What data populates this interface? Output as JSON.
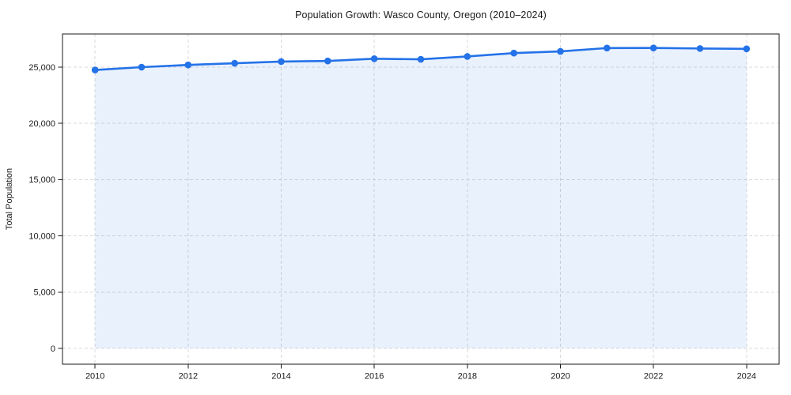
{
  "chart_data": {
    "type": "area",
    "title": "Population Growth: Wasco County, Oregon (2010–2024)",
    "xlabel": "",
    "ylabel": "Total Population",
    "x": [
      2010,
      2011,
      2012,
      2013,
      2014,
      2015,
      2016,
      2017,
      2018,
      2019,
      2020,
      2021,
      2022,
      2023,
      2024
    ],
    "series": [
      {
        "name": "Total Population",
        "values": [
          24750,
          25000,
          25200,
          25350,
          25500,
          25550,
          25750,
          25700,
          25950,
          26250,
          26400,
          26700,
          26710,
          26660,
          26630
        ]
      }
    ],
    "x_ticks": [
      2010,
      2012,
      2014,
      2016,
      2018,
      2020,
      2022,
      2024
    ],
    "y_ticks": [
      0,
      5000,
      10000,
      15000,
      20000,
      25000
    ],
    "y_tick_labels": [
      "0",
      "5,000",
      "10,000",
      "15,000",
      "20,000",
      "25,000"
    ],
    "xlim": [
      2009.3,
      2024.7
    ],
    "ylim": [
      -1400,
      27950
    ],
    "grid": true,
    "grid_style": "dashed",
    "legend_position": "none",
    "fill_to_value": 0,
    "colors": {
      "line": "#2472e8",
      "marker": "#2472e8",
      "fill": "rgba(36,114,232,0.10)",
      "grid": "#d9d9d9",
      "spine": "#1a1a1a",
      "tick_label": "#1a1a1a",
      "title": "#1a1a1a"
    }
  }
}
